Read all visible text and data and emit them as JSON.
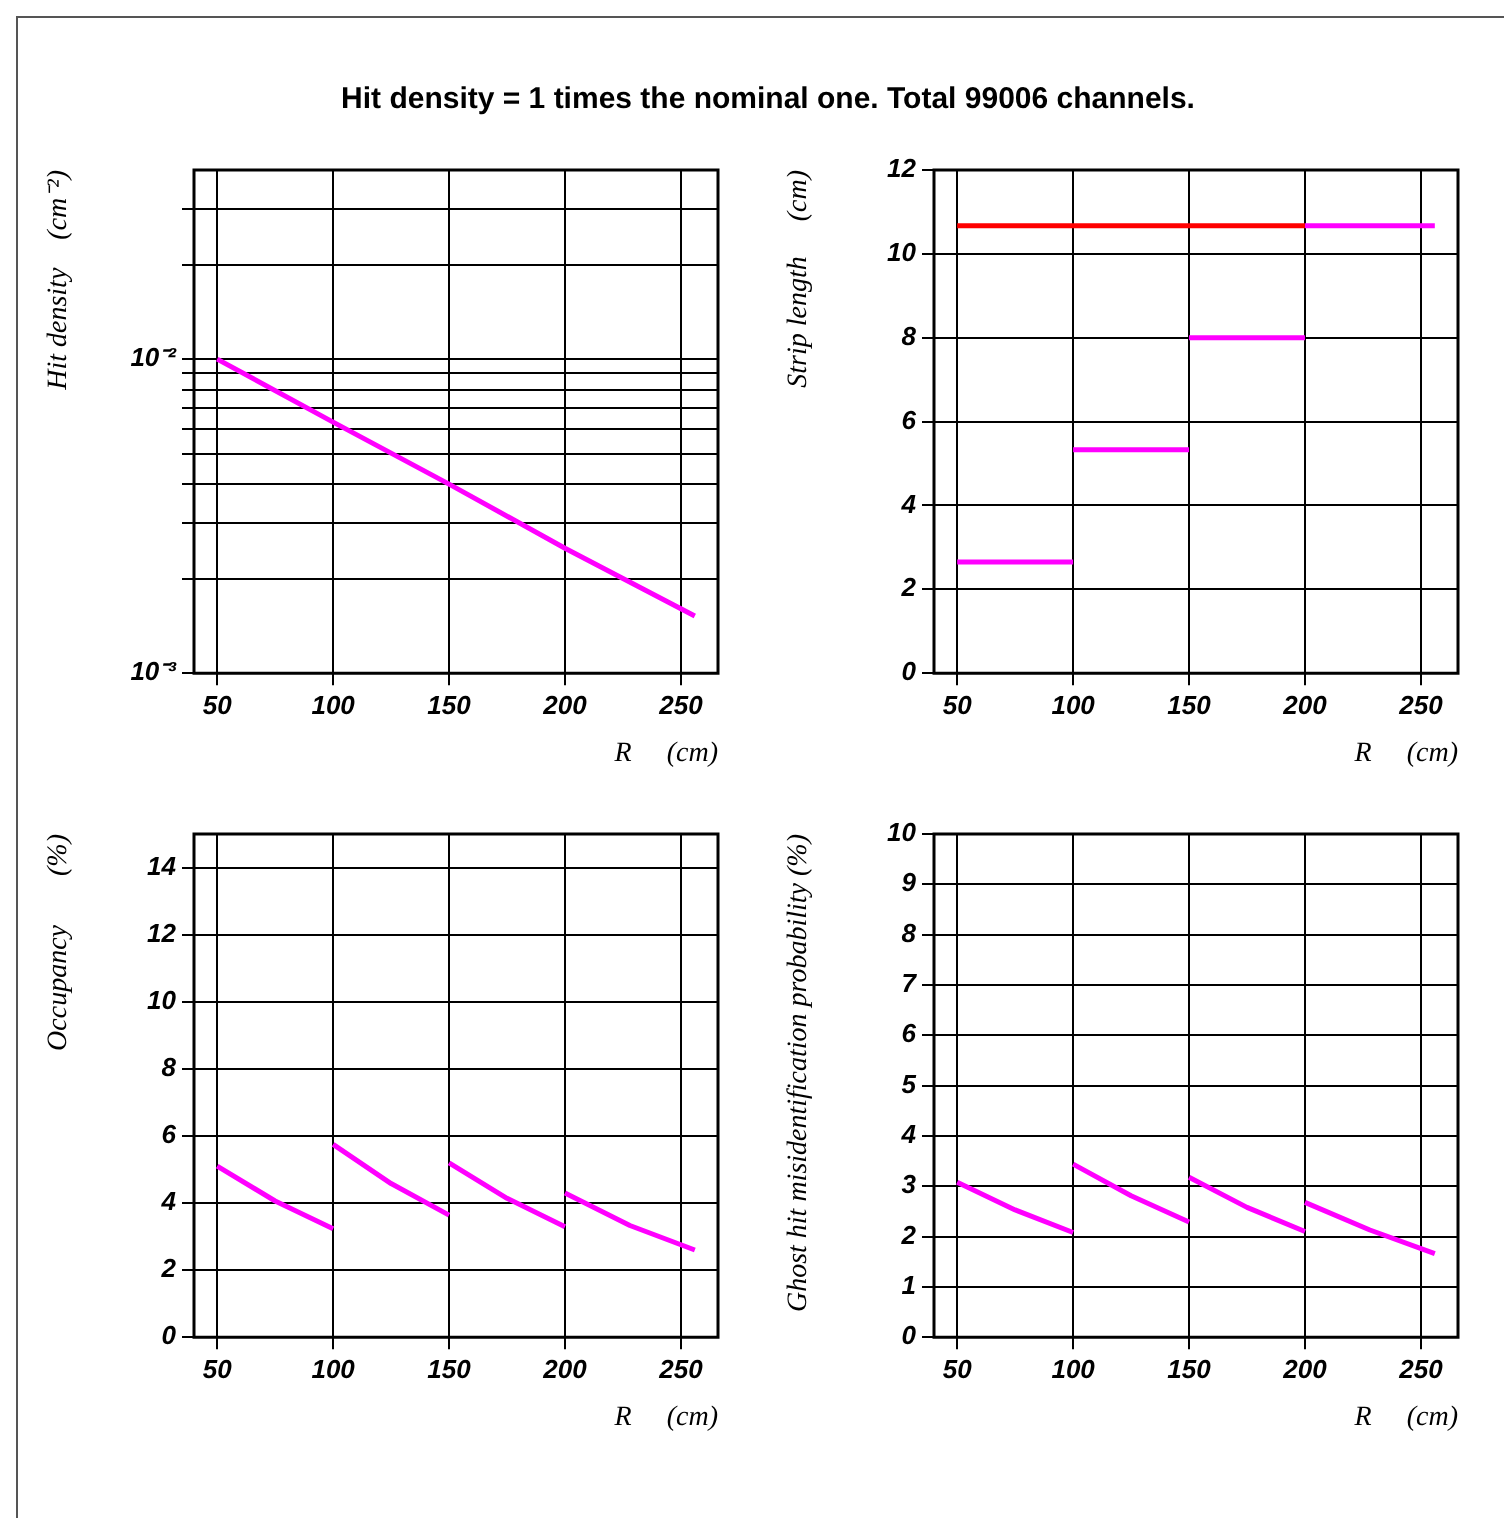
{
  "chart_data": [
    {
      "type": "line",
      "title": "Hit density = 1 times the nominal one. Total 99006 channels.",
      "xlabel": "R     (cm)",
      "ylabel": "Hit density    (cm⁻²)",
      "log": true,
      "grid": true,
      "xlim": [
        40,
        266
      ],
      "xticks": [
        50,
        100,
        150,
        200,
        250
      ],
      "ylim": [
        0.001,
        0.04
      ],
      "yticks": [
        {
          "value": 0.001,
          "label": "10⁻³"
        },
        {
          "value": 0.002,
          "label": null
        },
        {
          "value": 0.003,
          "label": null
        },
        {
          "value": 0.004,
          "label": null
        },
        {
          "value": 0.005,
          "label": null
        },
        {
          "value": 0.006,
          "label": null
        },
        {
          "value": 0.007,
          "label": null
        },
        {
          "value": 0.008,
          "label": null
        },
        {
          "value": 0.009,
          "label": null
        },
        {
          "value": 0.01,
          "label": "10⁻²"
        },
        {
          "value": 0.02,
          "label": null
        },
        {
          "value": 0.03,
          "label": null
        }
      ],
      "series": [
        {
          "color": "#ff00ff",
          "x": [
            50,
            100,
            150,
            200,
            256
          ],
          "values": [
            0.01,
            0.0063,
            0.004,
            0.0025,
            0.00152
          ]
        }
      ]
    },
    {
      "type": "line",
      "xlabel": "R     (cm)",
      "ylabel": "Strip length     (cm)",
      "grid": true,
      "xlim": [
        40,
        266
      ],
      "xticks": [
        50,
        100,
        150,
        200,
        250
      ],
      "ylim": [
        0,
        12
      ],
      "yticks": [
        0,
        2,
        4,
        6,
        8,
        10,
        12
      ],
      "series": [
        {
          "color": "#ff0000",
          "x": [
            50,
            200
          ],
          "values": [
            10.67,
            10.67
          ]
        },
        {
          "color": "#ff00ff",
          "x": [
            50,
            100
          ],
          "values": [
            2.65,
            2.65
          ]
        },
        {
          "color": "#ff00ff",
          "x": [
            100,
            150
          ],
          "values": [
            5.33,
            5.33
          ]
        },
        {
          "color": "#ff00ff",
          "x": [
            150,
            200
          ],
          "values": [
            8,
            8
          ]
        },
        {
          "color": "#ff00ff",
          "x": [
            200,
            256
          ],
          "values": [
            10.67,
            10.67
          ]
        }
      ]
    },
    {
      "type": "line",
      "xlabel": "R     (cm)",
      "ylabel": "Occupancy       (%)",
      "grid": true,
      "xlim": [
        40,
        266
      ],
      "xticks": [
        50,
        100,
        150,
        200,
        250
      ],
      "ylim": [
        0,
        15
      ],
      "yticks": [
        0,
        2,
        4,
        6,
        8,
        10,
        12,
        14
      ],
      "series": [
        {
          "color": "#ff00ff",
          "x": [
            50,
            75,
            100
          ],
          "values": [
            5.1,
            4.06,
            3.23
          ]
        },
        {
          "color": "#ff00ff",
          "x": [
            100,
            125,
            150
          ],
          "values": [
            5.75,
            4.58,
            3.64
          ]
        },
        {
          "color": "#ff00ff",
          "x": [
            150,
            175,
            200
          ],
          "values": [
            5.2,
            4.14,
            3.29
          ]
        },
        {
          "color": "#ff00ff",
          "x": [
            200,
            228,
            256
          ],
          "values": [
            4.3,
            3.33,
            2.6
          ]
        }
      ]
    },
    {
      "type": "line",
      "xlabel": "R     (cm)",
      "ylabel": "Ghost hit misidentification probability (%)",
      "grid": true,
      "xlim": [
        40,
        266
      ],
      "xticks": [
        50,
        100,
        150,
        200,
        250
      ],
      "ylim": [
        0,
        10
      ],
      "yticks": [
        0,
        1,
        2,
        3,
        4,
        5,
        6,
        7,
        8,
        9,
        10
      ],
      "series": [
        {
          "color": "#ff00ff",
          "x": [
            50,
            75,
            100
          ],
          "values": [
            3.08,
            2.53,
            2.08
          ]
        },
        {
          "color": "#ff00ff",
          "x": [
            100,
            125,
            150
          ],
          "values": [
            3.44,
            2.81,
            2.29
          ]
        },
        {
          "color": "#ff00ff",
          "x": [
            150,
            175,
            200
          ],
          "values": [
            3.18,
            2.58,
            2.1
          ]
        },
        {
          "color": "#ff00ff",
          "x": [
            200,
            228,
            256
          ],
          "values": [
            2.68,
            2.13,
            1.66
          ]
        }
      ]
    }
  ]
}
